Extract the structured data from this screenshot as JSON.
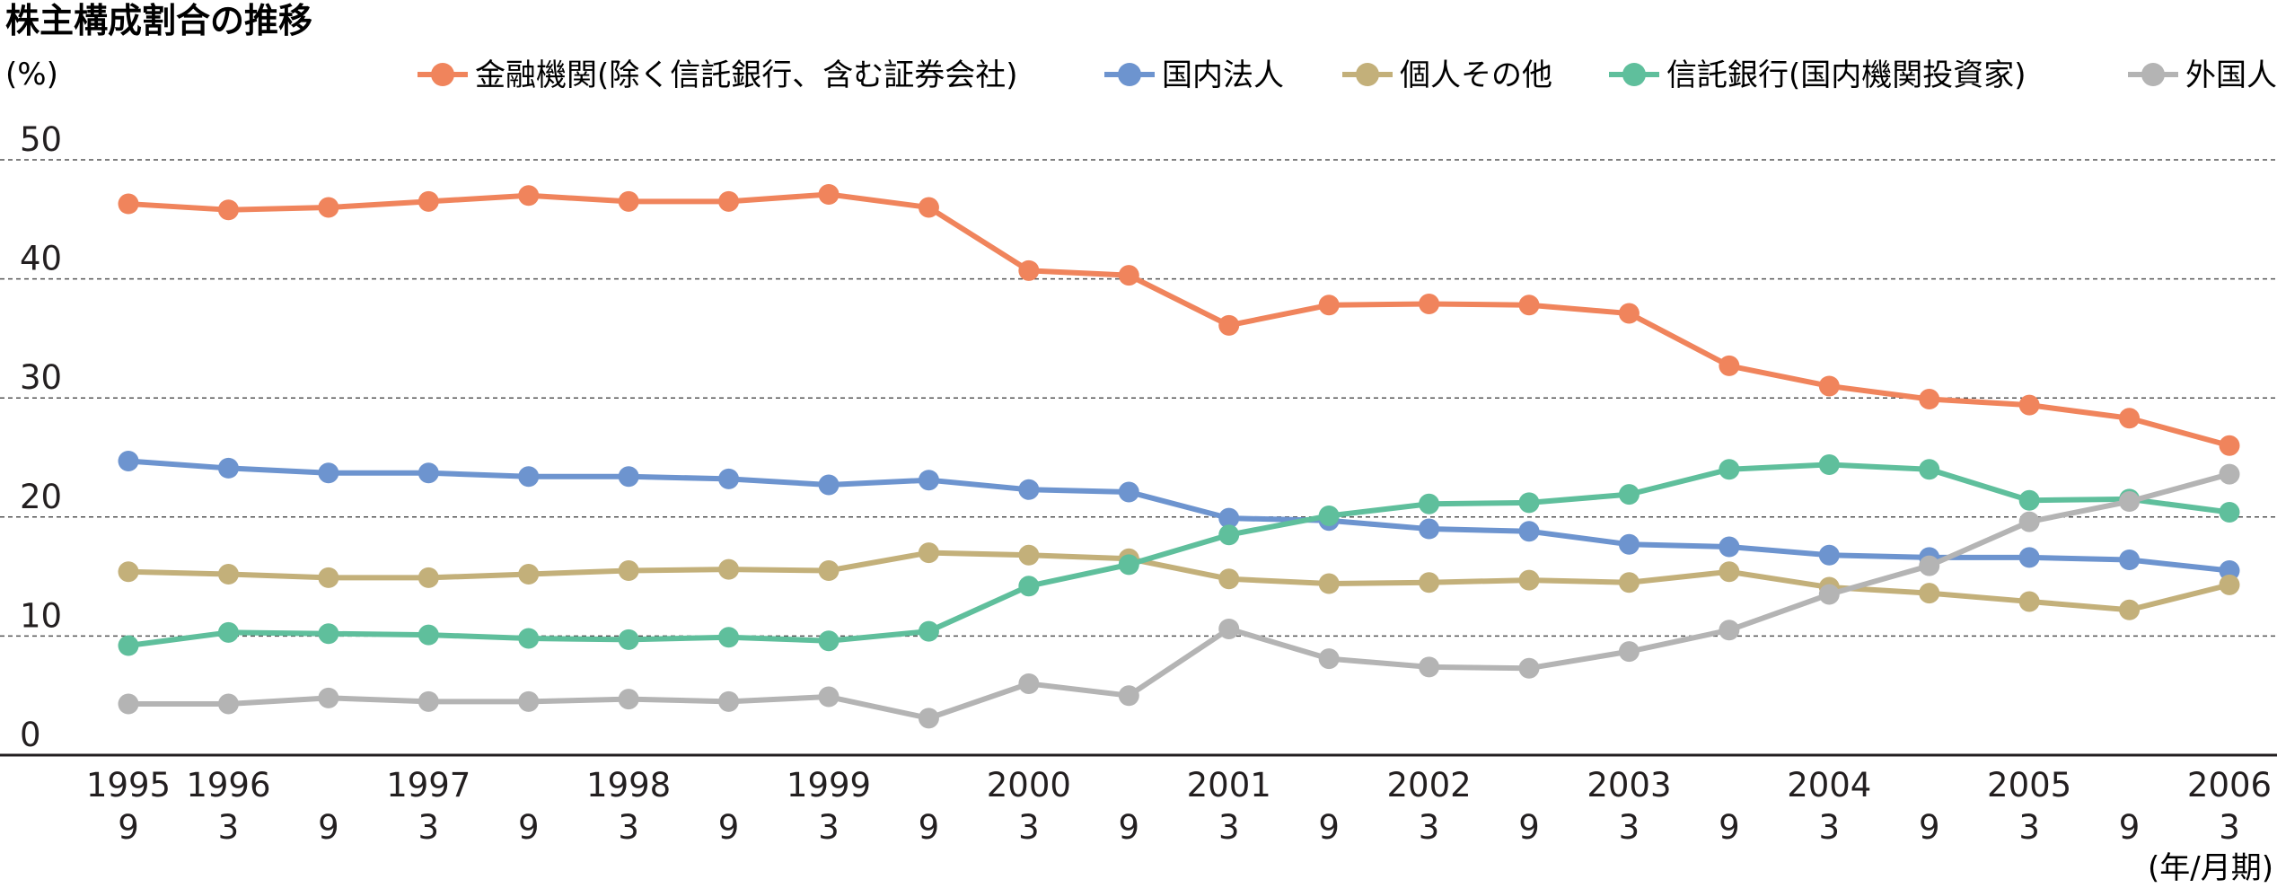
{
  "chart_data": {
    "type": "line",
    "title": "株主構成割合の推移",
    "ylabel": "(%)",
    "xlabel": "(年/月期)",
    "ylim": [
      0,
      50
    ],
    "yticks": [
      0,
      10,
      20,
      30,
      40,
      50
    ],
    "grid": "horizontal dashed",
    "legend_position": "top",
    "categories": [
      {
        "year": "1995",
        "month": "9"
      },
      {
        "year": "1996",
        "month": "3"
      },
      {
        "year": "",
        "month": "9"
      },
      {
        "year": "1997",
        "month": "3"
      },
      {
        "year": "",
        "month": "9"
      },
      {
        "year": "1998",
        "month": "3"
      },
      {
        "year": "",
        "month": "9"
      },
      {
        "year": "1999",
        "month": "3"
      },
      {
        "year": "",
        "month": "9"
      },
      {
        "year": "2000",
        "month": "3"
      },
      {
        "year": "",
        "month": "9"
      },
      {
        "year": "2001",
        "month": "3"
      },
      {
        "year": "",
        "month": "9"
      },
      {
        "year": "2002",
        "month": "3"
      },
      {
        "year": "",
        "month": "9"
      },
      {
        "year": "2003",
        "month": "3"
      },
      {
        "year": "",
        "month": "9"
      },
      {
        "year": "2004",
        "month": "3"
      },
      {
        "year": "",
        "month": "9"
      },
      {
        "year": "2005",
        "month": "3"
      },
      {
        "year": "",
        "month": "9"
      },
      {
        "year": "2006",
        "month": "3"
      }
    ],
    "series": [
      {
        "name": "金融機関(除く信託銀行、含む証券会社)",
        "color": "#f0845c",
        "values": [
          46.3,
          45.8,
          46.0,
          46.5,
          47.0,
          46.5,
          46.5,
          47.1,
          46.0,
          40.7,
          40.3,
          36.1,
          37.8,
          37.9,
          37.8,
          37.1,
          32.7,
          31.0,
          29.9,
          29.4,
          28.3,
          26.0
        ]
      },
      {
        "name": "国内法人",
        "color": "#6d94cf",
        "values": [
          24.7,
          24.1,
          23.7,
          23.7,
          23.4,
          23.4,
          23.2,
          22.7,
          23.1,
          22.3,
          22.1,
          19.9,
          19.7,
          19.0,
          18.8,
          17.7,
          17.5,
          16.8,
          16.6,
          16.6,
          16.4,
          15.5
        ]
      },
      {
        "name": "個人その他",
        "color": "#c3b07a",
        "values": [
          15.4,
          15.2,
          14.9,
          14.9,
          15.2,
          15.5,
          15.6,
          15.5,
          17.0,
          16.8,
          16.5,
          14.8,
          14.4,
          14.5,
          14.7,
          14.5,
          15.4,
          14.1,
          13.6,
          12.9,
          12.2,
          14.3
        ]
      },
      {
        "name": "信託銀行(国内機関投資家)",
        "color": "#5fbf9c",
        "values": [
          9.2,
          10.3,
          10.2,
          10.1,
          9.8,
          9.7,
          9.9,
          9.6,
          10.4,
          14.2,
          16.0,
          18.5,
          20.1,
          21.1,
          21.2,
          21.9,
          24.0,
          24.4,
          24.0,
          21.4,
          21.5,
          20.4
        ]
      },
      {
        "name": "外国人",
        "color": "#b4b4b4",
        "values": [
          4.3,
          4.3,
          4.8,
          4.5,
          4.5,
          4.7,
          4.5,
          4.9,
          3.1,
          6.0,
          5.0,
          10.6,
          8.1,
          7.4,
          7.3,
          8.7,
          10.5,
          13.5,
          15.9,
          19.6,
          21.3,
          23.6
        ]
      }
    ]
  }
}
